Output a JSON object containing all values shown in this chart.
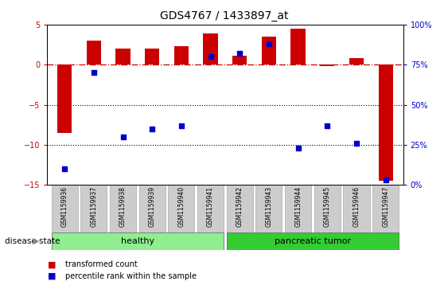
{
  "title": "GDS4767 / 1433897_at",
  "samples": [
    "GSM1159936",
    "GSM1159937",
    "GSM1159938",
    "GSM1159939",
    "GSM1159940",
    "GSM1159941",
    "GSM1159942",
    "GSM1159943",
    "GSM1159944",
    "GSM1159945",
    "GSM1159946",
    "GSM1159947"
  ],
  "bar_values": [
    -8.5,
    3.0,
    2.0,
    2.0,
    2.3,
    3.9,
    1.1,
    3.5,
    4.5,
    -0.2,
    0.8,
    -14.5
  ],
  "scatter_pct": [
    10,
    70,
    30,
    35,
    37,
    80,
    82,
    88,
    23,
    37,
    26,
    3
  ],
  "bar_color": "#CC0000",
  "scatter_color": "#0000CC",
  "left_ylim": [
    -15,
    5
  ],
  "left_yticks": [
    -15,
    -10,
    -5,
    0,
    5
  ],
  "right_ylim": [
    0,
    100
  ],
  "right_yticks": [
    0,
    25,
    50,
    75,
    100
  ],
  "right_yticklabels": [
    "0%",
    "25%",
    "50%",
    "75%",
    "100%"
  ],
  "dotted_lines": [
    -5,
    -10
  ],
  "healthy_indices": [
    0,
    1,
    2,
    3,
    4,
    5
  ],
  "tumor_indices": [
    6,
    7,
    8,
    9,
    10,
    11
  ],
  "healthy_color": "#90EE90",
  "tumor_color": "#33CC33",
  "bg_color": "#CCCCCC",
  "bar_width": 0.5,
  "disease_state_label": "disease state",
  "healthy_label": "healthy",
  "tumor_label": "pancreatic tumor",
  "legend1": "transformed count",
  "legend2": "percentile rank within the sample"
}
